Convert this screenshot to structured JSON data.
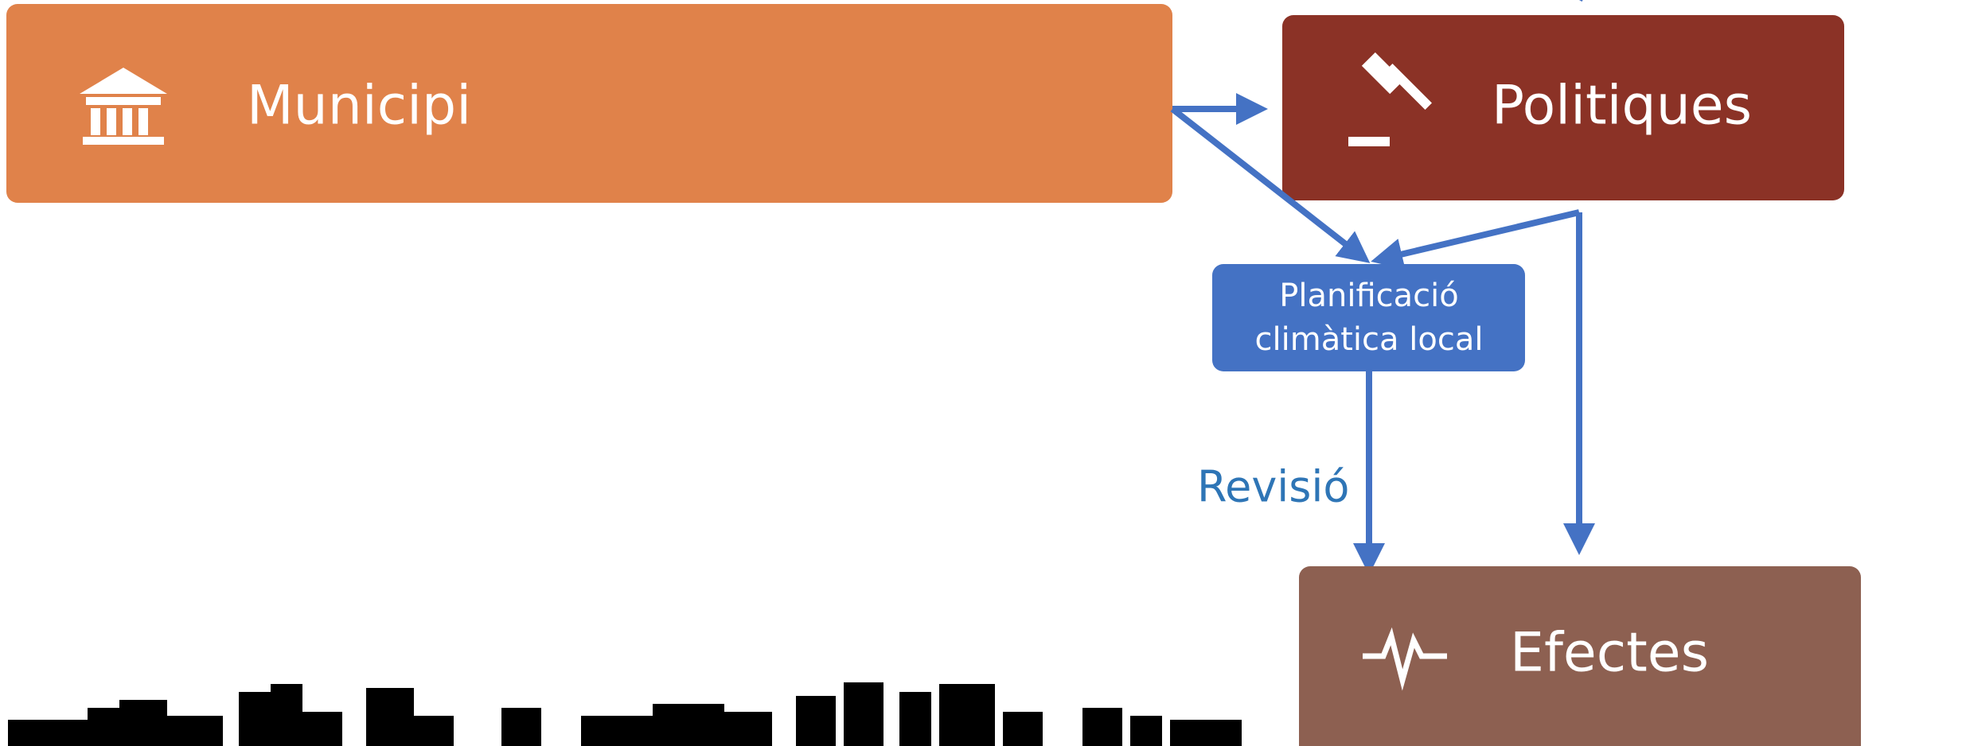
{
  "nodes": [
    {
      "label": "Municipi"
    },
    {
      "label": "Politiques"
    },
    {
      "label": "Planificació",
      "label2": "climàtica local"
    },
    {
      "label": "Efectes"
    }
  ],
  "edge_label": "Revisió"
}
